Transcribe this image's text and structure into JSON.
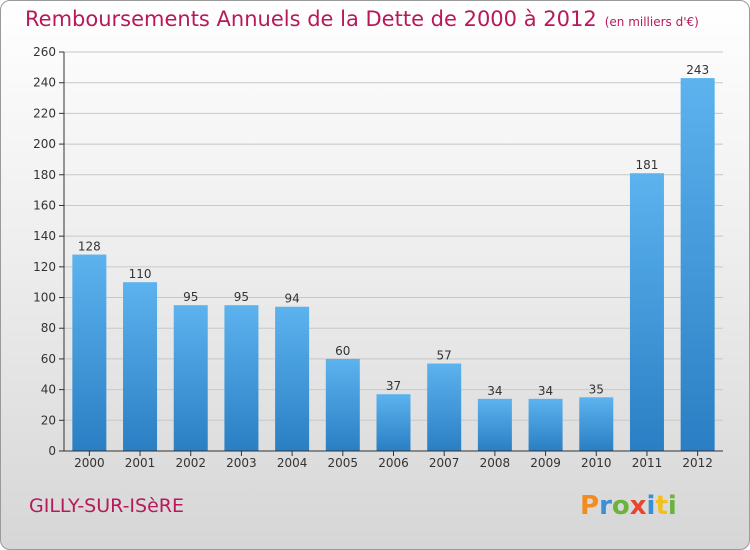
{
  "title": "Remboursements Annuels de la Dette de 2000 à 2012",
  "unit": "(en milliers d'€)",
  "commune": "GILLY-SUR-ISèRE",
  "brand": {
    "letters": [
      "P",
      "r",
      "o",
      "x",
      "i",
      "t",
      "i"
    ],
    "colors": [
      "#f28c1e",
      "#3a8fd6",
      "#6cb33e",
      "#e8452c",
      "#3a8fd6",
      "#f2c01e",
      "#6cb33e"
    ]
  },
  "colors": {
    "bar": "#3d9ee0",
    "bar_light": "#5cb3ee",
    "axis": "#333333",
    "grid": "#c8c8c8",
    "accent": "#b8195a"
  },
  "chart_data": {
    "type": "bar",
    "title": "Remboursements Annuels de la Dette de 2000 à 2012",
    "xlabel": "",
    "ylabel": "",
    "categories": [
      "2000",
      "2001",
      "2002",
      "2003",
      "2004",
      "2005",
      "2006",
      "2007",
      "2008",
      "2009",
      "2010",
      "2011",
      "2012"
    ],
    "values": [
      128,
      110,
      95,
      95,
      94,
      60,
      37,
      57,
      34,
      34,
      35,
      181,
      243
    ],
    "ylim": [
      0,
      260
    ],
    "yticks": [
      0,
      20,
      40,
      60,
      80,
      100,
      120,
      140,
      160,
      180,
      200,
      220,
      240,
      260
    ],
    "grid": true
  }
}
